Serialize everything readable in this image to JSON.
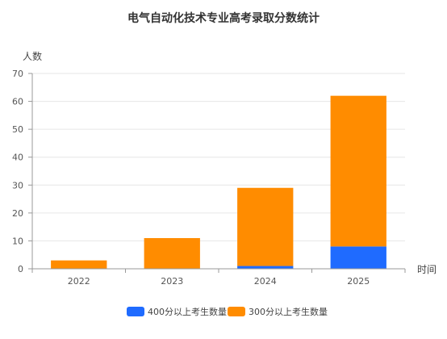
{
  "chart_data": {
    "type": "bar",
    "stacked": true,
    "title": "电气自动化技术专业高考录取分数统计",
    "ylabel": "人数",
    "xlabel": "时间",
    "categories": [
      "2022",
      "2023",
      "2024",
      "2025"
    ],
    "ylim": [
      0,
      70
    ],
    "yticks": [
      0,
      10,
      20,
      30,
      40,
      50,
      60,
      70
    ],
    "grid": true,
    "legend_position": "bottom",
    "series": [
      {
        "name": "400分以上考生数量",
        "color": "#1f6bff",
        "values": [
          0,
          0,
          1,
          8
        ]
      },
      {
        "name": "300分以上考生数量",
        "color": "#ff8c00",
        "values": [
          3,
          11,
          28,
          54
        ]
      }
    ]
  }
}
